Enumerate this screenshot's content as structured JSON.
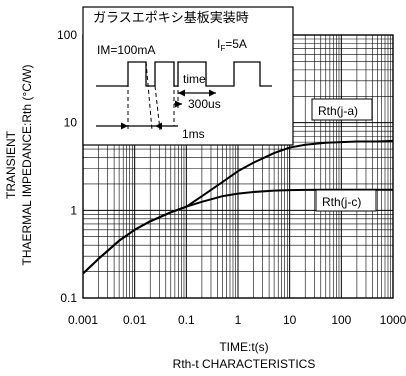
{
  "chart_data": {
    "type": "line",
    "x_scale": "log",
    "y_scale": "log",
    "xlim": [
      0.001,
      1000
    ],
    "ylim": [
      0.1,
      100
    ],
    "x_tick_labels": [
      "0.001",
      "0.01",
      "0.1",
      "1",
      "10",
      "100",
      "1000"
    ],
    "y_tick_labels": [
      "0.1",
      "1",
      "10",
      "100"
    ],
    "xlabel": "TIME:t(s)",
    "ylabel_line1": "TRANSIENT",
    "ylabel_line2": "THAERMAL IMPEDANCE:Rth (°C/W)",
    "caption": "Rth-t CHARACTERISTICS",
    "grid": true,
    "series": [
      {
        "name": "Rth(j-a)",
        "x": [
          0.001,
          0.002,
          0.005,
          0.01,
          0.02,
          0.05,
          0.1,
          0.2,
          0.5,
          1,
          2,
          5,
          10,
          20,
          50,
          100,
          200,
          500,
          1000
        ],
        "y": [
          0.19,
          0.28,
          0.45,
          0.6,
          0.75,
          0.95,
          1.1,
          1.45,
          2.1,
          2.8,
          3.5,
          4.5,
          5.2,
          5.6,
          5.9,
          6.0,
          6.1,
          6.1,
          6.2
        ]
      },
      {
        "name": "Rth(j-c)",
        "x": [
          0.001,
          0.002,
          0.005,
          0.01,
          0.02,
          0.05,
          0.1,
          0.2,
          0.5,
          1,
          2,
          5,
          10,
          20,
          50,
          100,
          200,
          500,
          1000
        ],
        "y": [
          0.19,
          0.28,
          0.45,
          0.6,
          0.75,
          0.95,
          1.1,
          1.25,
          1.45,
          1.55,
          1.62,
          1.68,
          1.7,
          1.71,
          1.72,
          1.72,
          1.72,
          1.72,
          1.72
        ]
      }
    ],
    "inset": {
      "title": "ガラスエポキシ基板実装時",
      "im_label": "IM=100mA",
      "if_label_main": "I",
      "if_label_sub": "F",
      "if_label_value": "=5A",
      "time_label": "time",
      "dur1_label": "300us",
      "dur2_label": "1ms"
    }
  }
}
